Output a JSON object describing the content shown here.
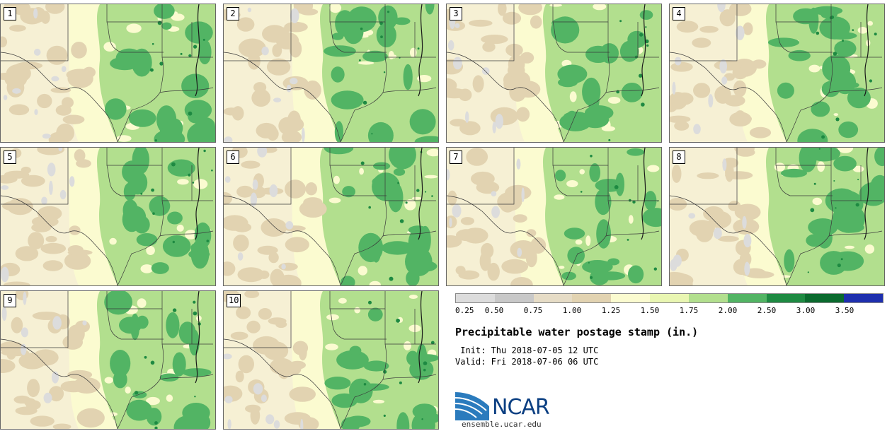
{
  "product": {
    "title": "Precipitable water postage stamp (in.)",
    "init": " Init: Thu 2018-07-05 12 UTC",
    "valid": "Valid: Fri 2018-07-06 06 UTC",
    "org": "NCAR",
    "site": "ensemble.ucar.edu"
  },
  "members": [
    "1",
    "2",
    "3",
    "4",
    "5",
    "6",
    "7",
    "8",
    "9",
    "10"
  ],
  "colorbar": {
    "labels": [
      "0.25",
      "0.50",
      "0.75",
      "1.00",
      "1.25",
      "1.50",
      "1.75",
      "2.00",
      "2.50",
      "3.00",
      "3.50"
    ],
    "colors": [
      "#dcdcdc",
      "#c8c8c8",
      "#e6dcc6",
      "#e2d3b1",
      "#fbfbd0",
      "#e9f6b2",
      "#b2df8e",
      "#52b464",
      "#1e8a42",
      "#0a6a2e",
      "#1e2fae"
    ]
  },
  "colors": {
    "land_tan": "#e2d3b1",
    "land_light": "#f6f0d4",
    "pale_yellow": "#fbfbd0",
    "light_green": "#b2df8e",
    "mid_green": "#52b464",
    "dark_green": "#1e8a42",
    "gray": "#dcdcdc",
    "boundary": "#3a3a3a",
    "logo_blue": "#0b3f82"
  }
}
